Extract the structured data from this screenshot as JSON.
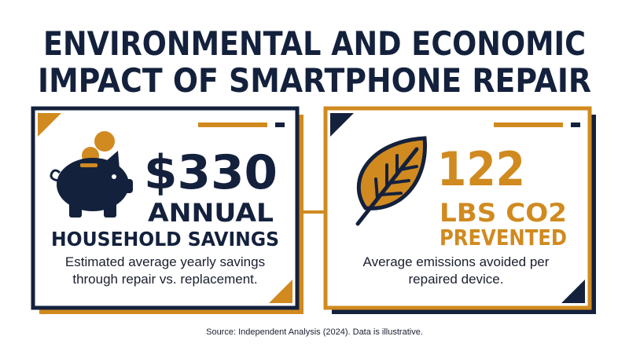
{
  "title": [
    "ENVIRONMENTAL AND ECONOMIC",
    "IMPACT OF SMARTPHONE REPAIR"
  ],
  "cards": [
    {
      "value": "$330",
      "label_line1": "ANNUAL",
      "label_line2": "HOUSEHOLD SAVINGS",
      "description": "Estimated average yearly savings through repair vs. replacement."
    },
    {
      "value": "122",
      "label_line1": "LBS CO2",
      "label_line2": "PREVENTED",
      "description": "Average emissions avoided per repaired device."
    }
  ],
  "source": "Source: Independent Analysis (2024). Data is illustrative."
}
